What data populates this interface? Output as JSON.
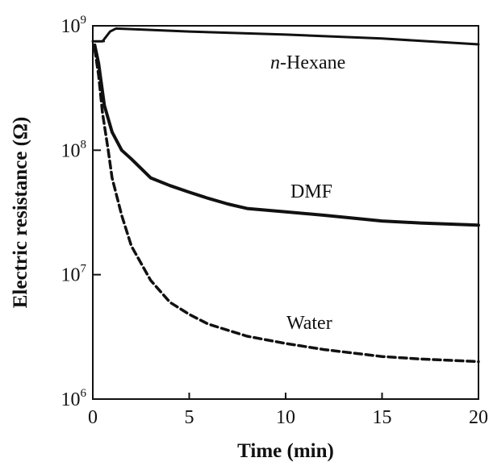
{
  "chart_data": {
    "type": "line",
    "xlabel": "Time  (min)",
    "ylabel": "Electric  resistance (Ω)",
    "xlim": [
      0,
      20
    ],
    "ylim": [
      1000000,
      1000000000
    ],
    "yscale": "log",
    "grid": false,
    "x_ticks": [
      {
        "value": 0,
        "label": "0"
      },
      {
        "value": 5,
        "label": "5"
      },
      {
        "value": 10,
        "label": "10"
      },
      {
        "value": 15,
        "label": "15"
      },
      {
        "value": 20,
        "label": "20"
      }
    ],
    "y_ticks": [
      {
        "value": 1000000,
        "base": "10",
        "exp": "6"
      },
      {
        "value": 10000000,
        "base": "10",
        "exp": "7"
      },
      {
        "value": 100000000,
        "base": "10",
        "exp": "8"
      },
      {
        "value": 1000000000,
        "base": "10",
        "exp": "9"
      }
    ],
    "series": [
      {
        "name": "n-Hexane",
        "label_prefix": "n",
        "label_rest": "-Hexane",
        "style": "solid",
        "x": [
          0,
          0.5,
          0.9,
          1.2,
          2,
          5,
          10,
          15,
          20
        ],
        "y": [
          750000000,
          750000000,
          900000000,
          950000000,
          940000000,
          900000000,
          850000000,
          790000000,
          710000000
        ]
      },
      {
        "name": "DMF",
        "style": "solid-thick",
        "x": [
          0.1,
          0.3,
          0.6,
          1,
          1.5,
          2,
          3,
          4,
          5,
          6,
          7,
          8,
          10,
          12,
          15,
          17,
          20
        ],
        "y": [
          700000000,
          500000000,
          230000000,
          140000000,
          100000000,
          85000000,
          60000000,
          52000000,
          46000000,
          41000000,
          37000000,
          34000000,
          32000000,
          30000000,
          27000000,
          26000000,
          25000000
        ]
      },
      {
        "name": "Water",
        "style": "dashed",
        "x": [
          0.1,
          0.3,
          0.5,
          0.8,
          1,
          1.5,
          2,
          3,
          4,
          5,
          6,
          8,
          10,
          12,
          15,
          17,
          20
        ],
        "y": [
          650000000,
          400000000,
          200000000,
          100000000,
          60000000,
          30000000,
          17000000,
          9000000,
          6000000,
          4800000,
          4000000,
          3200000,
          2800000,
          2500000,
          2200000,
          2100000,
          2000000
        ]
      }
    ]
  }
}
